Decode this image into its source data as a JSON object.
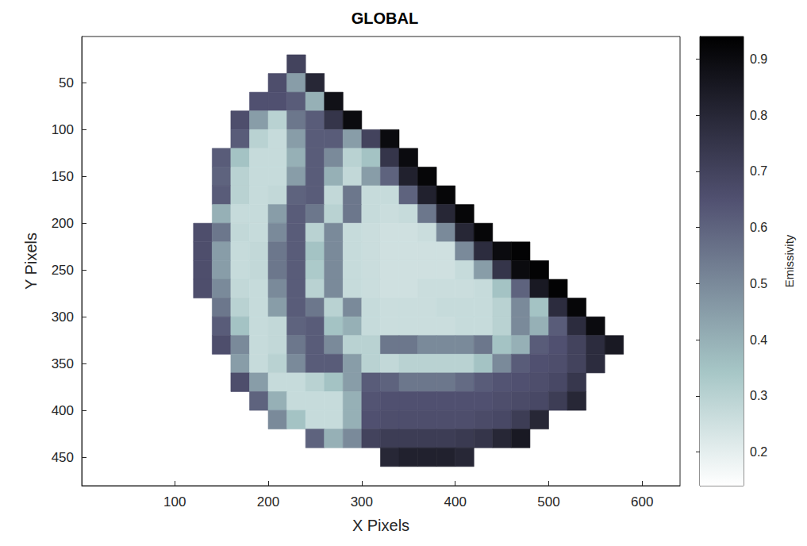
{
  "chart_data": {
    "type": "heatmap",
    "title": "GLOBAL",
    "x_label": "X Pixels",
    "y_label": "Y Pixels",
    "xlim": [
      0.5,
      640.5
    ],
    "ylim": [
      480.5,
      0.5
    ],
    "xticks": [
      100,
      200,
      300,
      400,
      500,
      600
    ],
    "yticks": [
      50,
      100,
      150,
      200,
      250,
      300,
      350,
      400,
      450
    ],
    "grid": false,
    "x": [
      130,
      150,
      170,
      190,
      210,
      230,
      250,
      270,
      290,
      310,
      330,
      350,
      370,
      390,
      410,
      430,
      450,
      470,
      490,
      510,
      530,
      550,
      570,
      590
    ],
    "y": [
      30,
      50,
      70,
      90,
      110,
      130,
      150,
      170,
      190,
      210,
      230,
      250,
      270,
      290,
      310,
      330,
      350,
      370,
      390,
      410,
      430,
      450
    ],
    "cells": [
      [
        null,
        null,
        null,
        null,
        null,
        0.7,
        null,
        null,
        null,
        null,
        null,
        null,
        null,
        null,
        null,
        null,
        null,
        null,
        null,
        null,
        null,
        null,
        null,
        null
      ],
      [
        null,
        null,
        null,
        null,
        0.66,
        0.45,
        0.8,
        null,
        null,
        null,
        null,
        null,
        null,
        null,
        null,
        null,
        null,
        null,
        null,
        null,
        null,
        null,
        null,
        null
      ],
      [
        null,
        null,
        null,
        0.65,
        0.65,
        0.62,
        0.4,
        0.88,
        null,
        null,
        null,
        null,
        null,
        null,
        null,
        null,
        null,
        null,
        null,
        null,
        null,
        null,
        null,
        null
      ],
      [
        null,
        null,
        0.66,
        0.45,
        0.3,
        0.55,
        0.62,
        0.75,
        0.9,
        null,
        null,
        null,
        null,
        null,
        null,
        null,
        null,
        null,
        null,
        null,
        null,
        null,
        null,
        null
      ],
      [
        null,
        null,
        0.62,
        0.3,
        0.27,
        0.45,
        0.62,
        0.62,
        0.45,
        0.7,
        0.9,
        null,
        null,
        null,
        null,
        null,
        null,
        null,
        null,
        null,
        null,
        null,
        null,
        null
      ],
      [
        null,
        0.62,
        0.35,
        0.27,
        0.27,
        0.4,
        0.62,
        0.5,
        0.3,
        0.35,
        0.75,
        0.9,
        null,
        null,
        null,
        null,
        null,
        null,
        null,
        null,
        null,
        null,
        null,
        null
      ],
      [
        null,
        0.6,
        0.3,
        0.27,
        0.27,
        0.45,
        0.62,
        0.4,
        0.28,
        0.45,
        0.6,
        0.82,
        0.92,
        null,
        null,
        null,
        null,
        null,
        null,
        null,
        null,
        null,
        null,
        null
      ],
      [
        null,
        0.62,
        0.3,
        0.27,
        0.28,
        0.6,
        0.62,
        0.28,
        0.55,
        0.27,
        0.27,
        0.6,
        0.82,
        0.92,
        null,
        null,
        null,
        null,
        null,
        null,
        null,
        null,
        null,
        null
      ],
      [
        null,
        0.4,
        0.27,
        0.27,
        0.45,
        0.62,
        0.55,
        0.3,
        0.55,
        0.27,
        0.26,
        0.27,
        0.55,
        0.8,
        0.92,
        null,
        null,
        null,
        null,
        null,
        null,
        null,
        null,
        null
      ],
      [
        0.66,
        0.55,
        0.28,
        0.27,
        0.5,
        0.62,
        0.3,
        0.5,
        0.27,
        0.26,
        0.25,
        0.25,
        0.26,
        0.5,
        0.8,
        0.92,
        null,
        null,
        null,
        null,
        null,
        null,
        null,
        null
      ],
      [
        0.66,
        0.45,
        0.27,
        0.28,
        0.55,
        0.62,
        0.35,
        0.5,
        0.27,
        0.26,
        0.25,
        0.25,
        0.25,
        0.25,
        0.5,
        0.78,
        0.9,
        0.93,
        null,
        null,
        null,
        null,
        null,
        null
      ],
      [
        0.66,
        0.45,
        0.27,
        0.28,
        0.55,
        0.62,
        0.33,
        0.5,
        0.27,
        0.26,
        0.25,
        0.25,
        0.25,
        0.25,
        0.27,
        0.45,
        0.75,
        0.9,
        0.93,
        null,
        null,
        null,
        null,
        null
      ],
      [
        0.66,
        0.5,
        0.28,
        0.27,
        0.5,
        0.62,
        0.3,
        0.5,
        0.27,
        0.26,
        0.25,
        0.25,
        0.26,
        0.26,
        0.26,
        0.27,
        0.35,
        0.6,
        0.85,
        0.93,
        null,
        null,
        null,
        null
      ],
      [
        null,
        0.55,
        0.3,
        0.27,
        0.45,
        0.62,
        0.55,
        0.3,
        0.5,
        0.27,
        0.26,
        0.26,
        0.26,
        0.27,
        0.27,
        0.27,
        0.3,
        0.5,
        0.35,
        0.78,
        0.92,
        null,
        null,
        null
      ],
      [
        null,
        0.62,
        0.35,
        0.27,
        0.28,
        0.6,
        0.62,
        0.35,
        0.4,
        0.27,
        0.26,
        0.26,
        0.26,
        0.26,
        0.27,
        0.27,
        0.3,
        0.5,
        0.4,
        0.62,
        0.78,
        0.9,
        null,
        null
      ],
      [
        null,
        0.66,
        0.5,
        0.27,
        0.28,
        0.55,
        0.62,
        0.5,
        0.3,
        0.3,
        0.55,
        0.55,
        0.5,
        0.5,
        0.5,
        0.55,
        0.35,
        0.4,
        0.62,
        0.65,
        0.7,
        0.78,
        0.85,
        null
      ],
      [
        null,
        null,
        0.45,
        0.27,
        0.3,
        0.5,
        0.62,
        0.62,
        0.45,
        0.3,
        0.28,
        0.3,
        0.3,
        0.3,
        0.3,
        0.35,
        0.5,
        0.62,
        0.65,
        0.66,
        0.7,
        0.78,
        null,
        null
      ],
      [
        null,
        null,
        0.66,
        0.45,
        0.27,
        0.27,
        0.3,
        0.35,
        0.45,
        0.62,
        0.6,
        0.55,
        0.55,
        0.55,
        0.58,
        0.62,
        0.64,
        0.65,
        0.66,
        0.68,
        0.74,
        null,
        null,
        null
      ],
      [
        null,
        null,
        null,
        0.6,
        0.4,
        0.27,
        0.27,
        0.27,
        0.4,
        0.64,
        0.65,
        0.65,
        0.65,
        0.65,
        0.65,
        0.65,
        0.66,
        0.67,
        0.68,
        0.72,
        0.8,
        null,
        null,
        null
      ],
      [
        null,
        null,
        null,
        null,
        0.5,
        0.35,
        0.27,
        0.27,
        0.4,
        0.65,
        0.66,
        0.66,
        0.66,
        0.66,
        0.66,
        0.67,
        0.68,
        0.72,
        0.8,
        null,
        null,
        null,
        null,
        null
      ],
      [
        null,
        null,
        null,
        null,
        null,
        null,
        0.6,
        0.4,
        0.5,
        0.7,
        0.72,
        0.72,
        0.72,
        0.72,
        0.73,
        0.75,
        0.8,
        0.85,
        null,
        null,
        null,
        null,
        null,
        null
      ],
      [
        null,
        null,
        null,
        null,
        null,
        null,
        null,
        null,
        null,
        null,
        0.8,
        0.82,
        0.82,
        0.82,
        0.8,
        null,
        null,
        null,
        null,
        null,
        null,
        null,
        null,
        null
      ]
    ],
    "colorbar": {
      "label": "Emissivity",
      "range": [
        0.14,
        0.94
      ],
      "ticks": [
        0.2,
        0.3,
        0.4,
        0.5,
        0.6,
        0.7,
        0.8,
        0.9
      ]
    }
  }
}
